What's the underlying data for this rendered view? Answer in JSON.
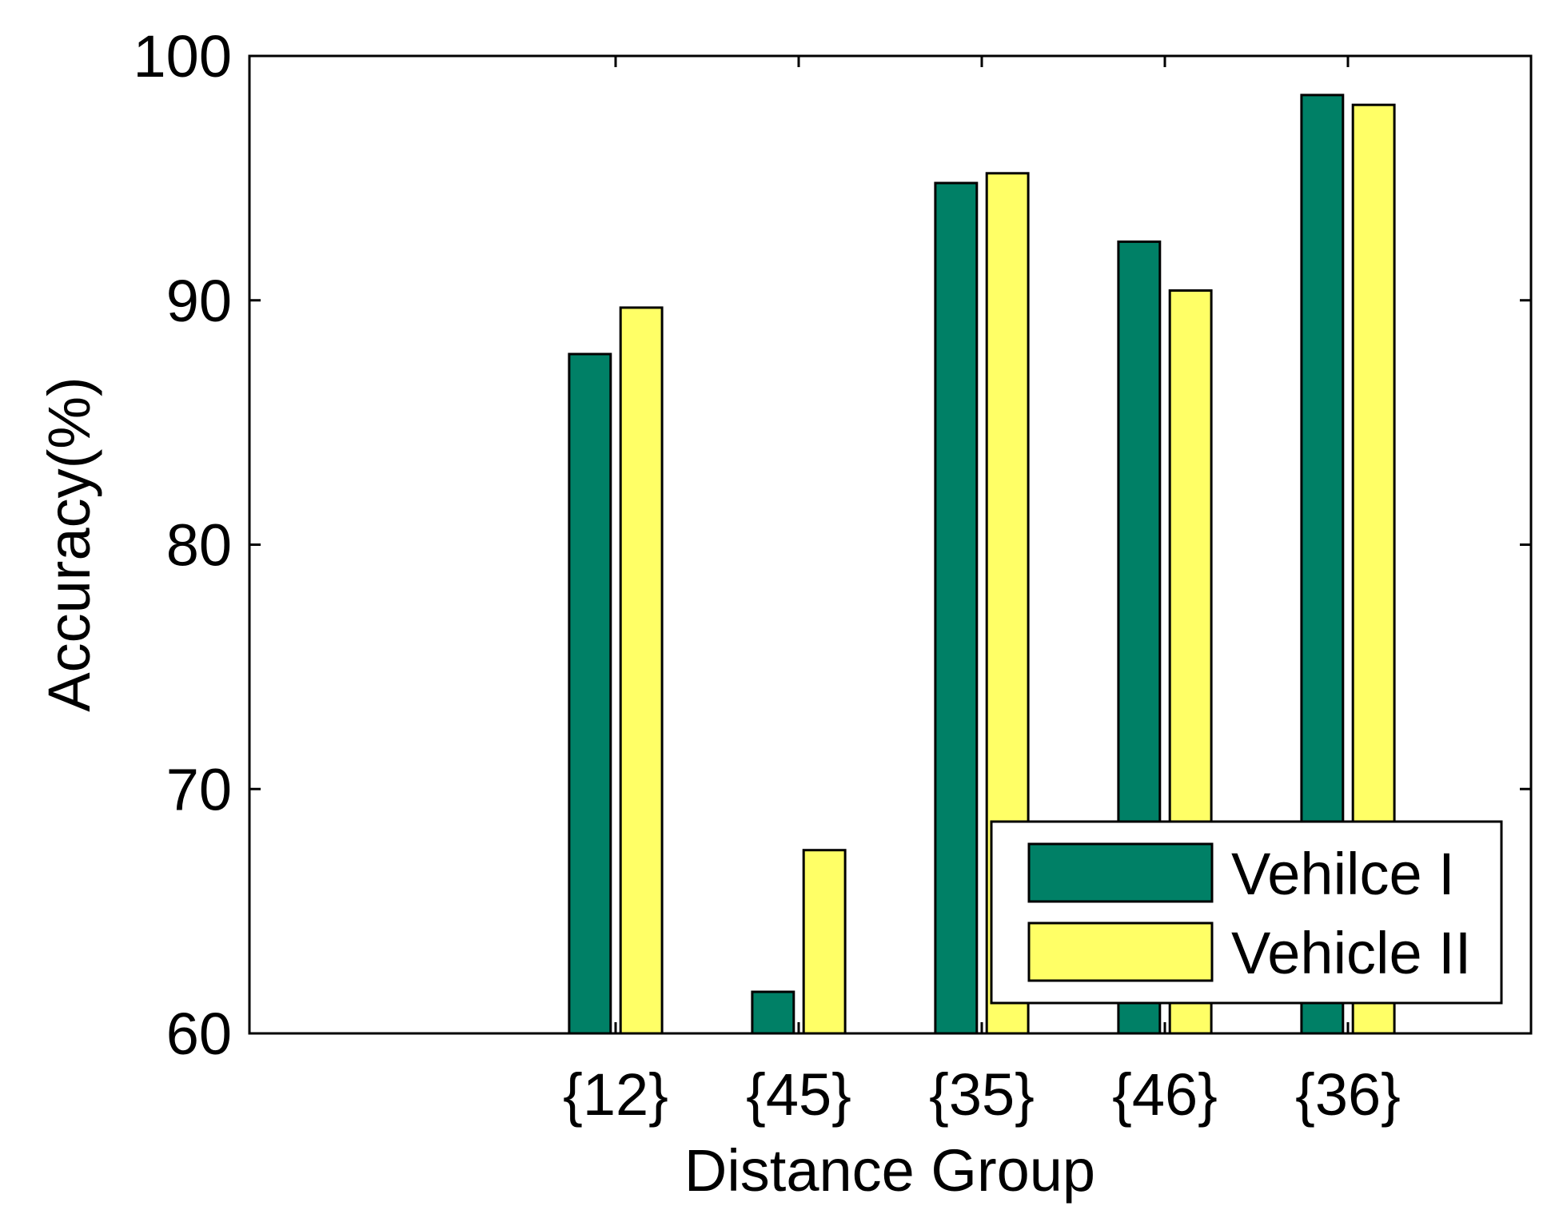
{
  "chart_data": {
    "type": "bar",
    "title": "",
    "xlabel": "Distance Group",
    "ylabel": "Accuracy(%)",
    "categories": [
      "{12}",
      "{45}",
      "{35}",
      "{46}",
      "{36}"
    ],
    "series": [
      {
        "name": "Vehilce I",
        "color": "#008066",
        "values": [
          87.8,
          61.7,
          94.8,
          92.4,
          98.4
        ]
      },
      {
        "name": "Vehicle II",
        "color": "#FFFF66",
        "values": [
          89.7,
          67.5,
          95.2,
          90.4,
          98.0
        ]
      }
    ],
    "x_range": [
      -1,
      6
    ],
    "ylim": [
      60,
      100
    ],
    "yticks": [
      60,
      70,
      80,
      90,
      100
    ],
    "ytick_labels": [
      "60",
      "70",
      "80",
      "90",
      "100"
    ],
    "grid": false,
    "legend_position": "bottom-right"
  }
}
